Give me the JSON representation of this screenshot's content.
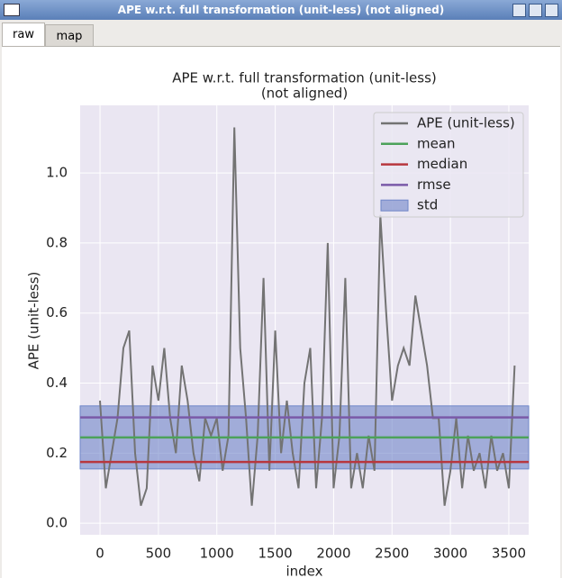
{
  "window": {
    "title": "APE w.r.t. full transformation (unit-less) (not aligned)"
  },
  "tabs": [
    "raw",
    "map"
  ],
  "chart_data": {
    "type": "line",
    "title": [
      "APE w.r.t. full transformation (unit-less)",
      "(not aligned)"
    ],
    "xlabel": "index",
    "ylabel": "APE (unit-less)",
    "xlim": [
      -170,
      3670
    ],
    "ylim": [
      -0.033,
      1.193
    ],
    "xticks": [
      0,
      500,
      1000,
      1500,
      2000,
      2500,
      3000,
      3500
    ],
    "yticks": [
      {
        "value": 0,
        "label": "0.0"
      },
      0.2,
      0.4,
      0.6,
      0.8,
      {
        "value": 1,
        "label": "1.0"
      }
    ],
    "grid": true,
    "legend": "upper right",
    "series": [
      {
        "name": "APE (unit-less)",
        "color": "#737373",
        "x": [
          0,
          50,
          100,
          150,
          200,
          250,
          300,
          350,
          400,
          450,
          500,
          550,
          600,
          650,
          700,
          750,
          800,
          850,
          900,
          950,
          1000,
          1050,
          1100,
          1150,
          1200,
          1250,
          1300,
          1350,
          1400,
          1450,
          1500,
          1550,
          1600,
          1650,
          1700,
          1750,
          1800,
          1850,
          1900,
          1950,
          2000,
          2050,
          2100,
          2150,
          2200,
          2250,
          2300,
          2350,
          2400,
          2450,
          2500,
          2550,
          2600,
          2650,
          2700,
          2750,
          2800,
          2850,
          2900,
          2950,
          3000,
          3050,
          3100,
          3150,
          3200,
          3250,
          3300,
          3350,
          3400,
          3450,
          3500,
          3550
        ],
        "values": [
          0.35,
          0.1,
          0.2,
          0.3,
          0.5,
          0.55,
          0.2,
          0.05,
          0.1,
          0.45,
          0.35,
          0.5,
          0.3,
          0.2,
          0.45,
          0.35,
          0.2,
          0.12,
          0.3,
          0.25,
          0.3,
          0.15,
          0.25,
          1.13,
          0.5,
          0.3,
          0.05,
          0.25,
          0.7,
          0.15,
          0.55,
          0.2,
          0.35,
          0.2,
          0.1,
          0.4,
          0.5,
          0.1,
          0.3,
          0.8,
          0.1,
          0.25,
          0.7,
          0.1,
          0.2,
          0.1,
          0.25,
          0.15,
          0.88,
          0.6,
          0.35,
          0.45,
          0.5,
          0.45,
          0.65,
          0.55,
          0.45,
          0.3,
          0.3,
          0.05,
          0.15,
          0.3,
          0.1,
          0.25,
          0.15,
          0.2,
          0.1,
          0.25,
          0.15,
          0.2,
          0.1,
          0.45
        ]
      }
    ],
    "lines": [
      {
        "name": "mean",
        "color": "#4ca25a",
        "value": 0.245
      },
      {
        "name": "median",
        "color": "#b8373e",
        "value": 0.175
      },
      {
        "name": "rmse",
        "color": "#7a5aa8",
        "value": 0.302
      }
    ],
    "band": {
      "name": "std",
      "color": "#6f86c8",
      "value": 0.09
    }
  }
}
